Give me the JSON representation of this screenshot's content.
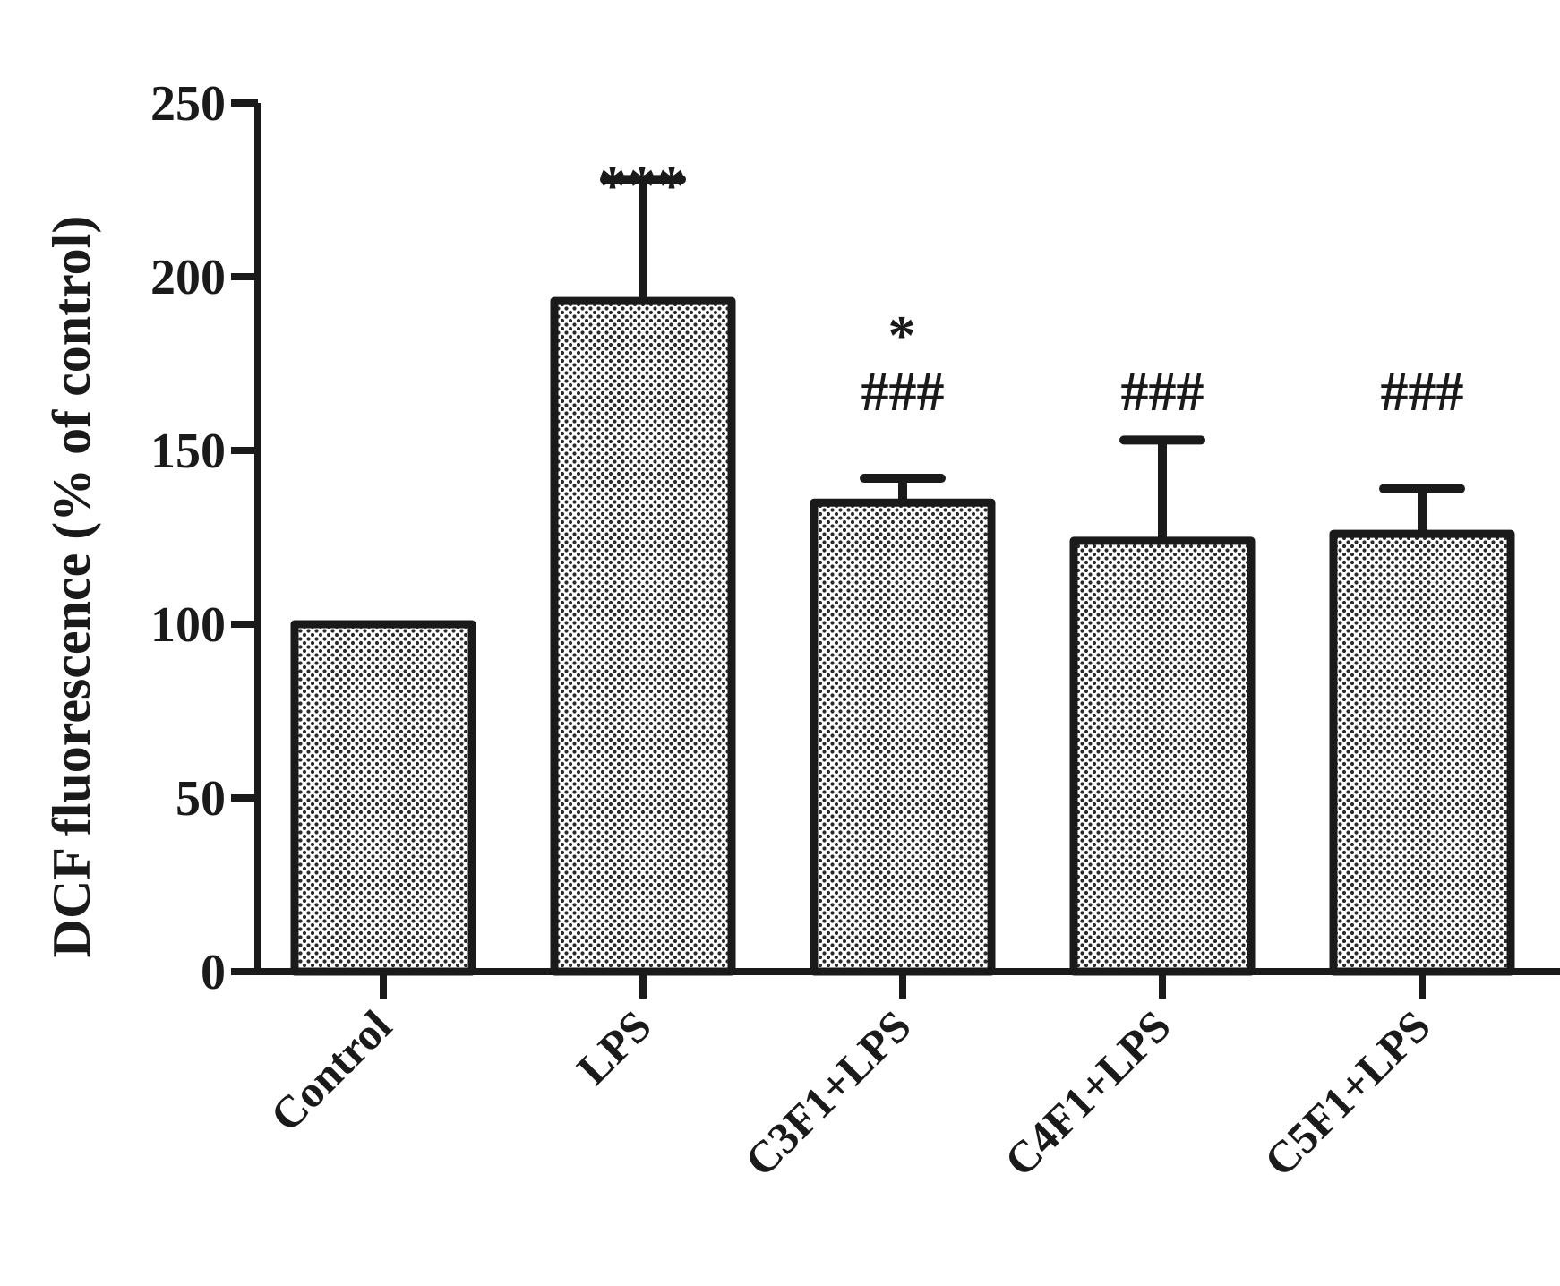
{
  "chart_data": {
    "type": "bar",
    "title": "",
    "xlabel": "",
    "ylabel": "DCF fluorescence (% of control)",
    "ylim": [
      0,
      250
    ],
    "yticks": [
      0,
      50,
      100,
      150,
      200,
      250
    ],
    "categories": [
      "Control",
      "LPS",
      "C3F1+LPS",
      "C4F1+LPS",
      "C5F1+LPS"
    ],
    "values": [
      100,
      193,
      135,
      124,
      126
    ],
    "error_upper": [
      0,
      35,
      7,
      29,
      13
    ],
    "annotations": [
      {
        "category": "LPS",
        "lines": [
          "***"
        ]
      },
      {
        "category": "C3F1+LPS",
        "lines": [
          "*",
          "###"
        ]
      },
      {
        "category": "C4F1+LPS",
        "lines": [
          "###"
        ]
      },
      {
        "category": "C5F1+LPS",
        "lines": [
          "###"
        ]
      }
    ],
    "bar_fill": "crosshatch-dots",
    "bar_color": "#1a1a1a",
    "grid": false,
    "legend": "none"
  }
}
